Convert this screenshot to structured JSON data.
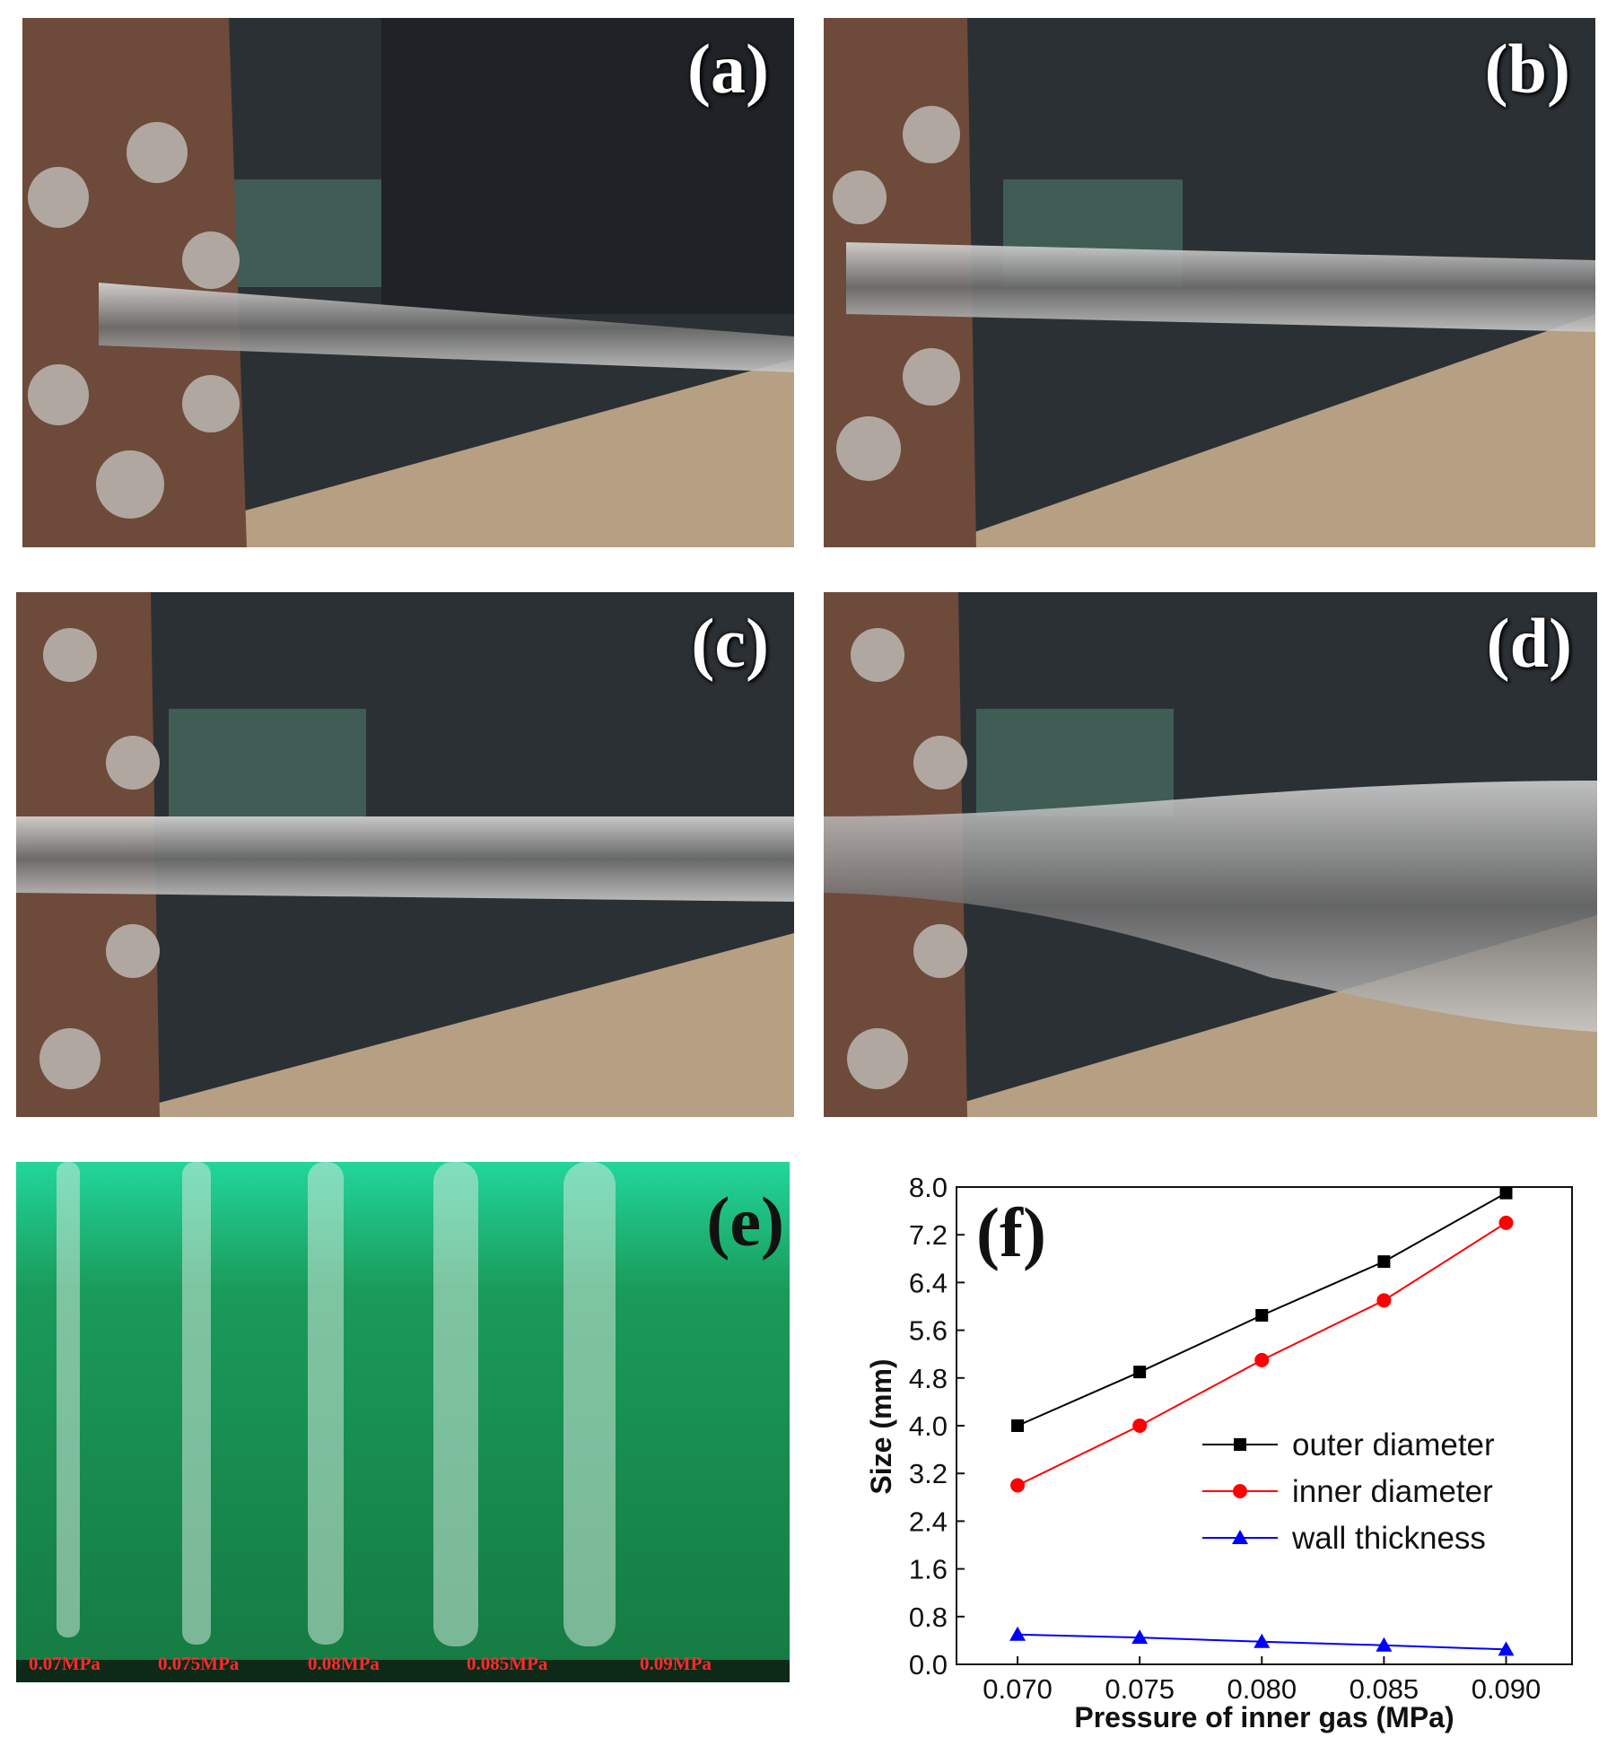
{
  "panels": {
    "a": {
      "label": "(a)"
    },
    "b": {
      "label": "(b)"
    },
    "c": {
      "label": "(c)"
    },
    "d": {
      "label": "(d)"
    },
    "e": {
      "label": "(e)",
      "tube_labels": [
        "0.07MPa",
        "0.075MPa",
        "0.08MPa",
        "0.085MPa",
        "0.09MPa"
      ]
    },
    "f": {
      "label": "(f)"
    }
  },
  "colors": {
    "outer": "#000000",
    "inner": "#ff0000",
    "wall": "#0000ff",
    "green_background": "#1a7a3e"
  },
  "chart_data": {
    "type": "line",
    "xlabel": "Pressure of inner gas (MPa)",
    "ylabel": "Size (mm)",
    "x": [
      0.07,
      0.075,
      0.08,
      0.085,
      0.09
    ],
    "x_ticks": [
      "0.070",
      "0.075",
      "0.080",
      "0.085",
      "0.090"
    ],
    "xlim": [
      0.0675,
      0.0927
    ],
    "ylim": [
      0.0,
      8.0
    ],
    "y_ticks": [
      "0.0",
      "0.8",
      "1.6",
      "2.4",
      "3.2",
      "4.0",
      "4.8",
      "5.6",
      "6.4",
      "7.2",
      "8.0"
    ],
    "legend_position": "lower-right",
    "series": [
      {
        "name": "outer diameter",
        "marker": "square",
        "color": "#000000",
        "values": [
          4.0,
          4.9,
          5.85,
          6.75,
          7.9
        ]
      },
      {
        "name": "inner diameter",
        "marker": "circle",
        "color": "#ff0000",
        "values": [
          3.0,
          4.0,
          5.1,
          6.1,
          7.4
        ]
      },
      {
        "name": "wall thickness",
        "marker": "triangle",
        "color": "#0000ff",
        "values": [
          0.5,
          0.45,
          0.38,
          0.32,
          0.25
        ]
      }
    ]
  }
}
